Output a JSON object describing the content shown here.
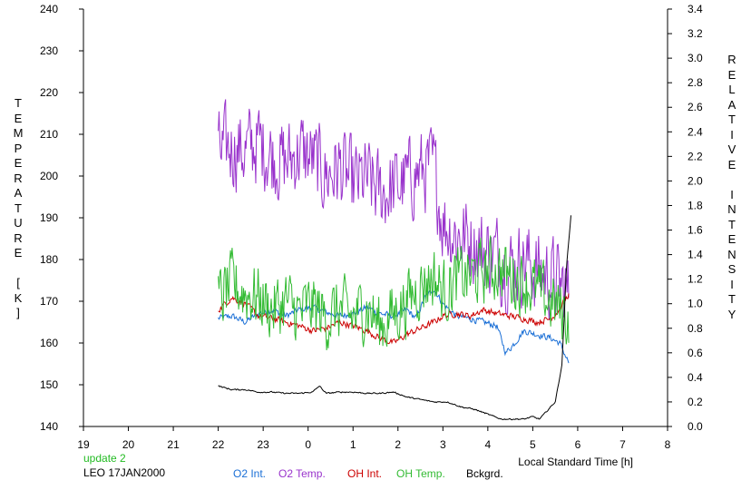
{
  "chart_data": {
    "type": "line",
    "xlabel": "Local Standard Time [h]",
    "ylabel_left": "TEMPERATURE [K]",
    "ylabel_right": "RELATIVE INTENSITY",
    "x_ticks": [
      "19",
      "20",
      "21",
      "22",
      "23",
      "0",
      "1",
      "2",
      "3",
      "4",
      "5",
      "6",
      "7",
      "8"
    ],
    "ylim_left": [
      140,
      240
    ],
    "yticks_left": [
      140,
      150,
      160,
      170,
      180,
      190,
      200,
      210,
      220,
      230,
      240
    ],
    "ylim_right": [
      0.0,
      3.4
    ],
    "yticks_right": [
      "0.0",
      "0.2",
      "0.4",
      "0.6",
      "0.8",
      "1.0",
      "1.2",
      "1.4",
      "1.6",
      "1.8",
      "2.0",
      "2.2",
      "2.4",
      "2.6",
      "2.8",
      "3.0",
      "3.2",
      "3.4"
    ],
    "xlim_hours_after_19": [
      0,
      13
    ],
    "grid": false,
    "series": [
      {
        "name": "O2 Int.",
        "color": "#1a6fd6",
        "axis": "right",
        "x": [
          22.0,
          22.3,
          22.6,
          22.9,
          23.2,
          23.5,
          23.8,
          24.1,
          24.4,
          24.7,
          25.0,
          25.3,
          25.6,
          25.9,
          26.2,
          26.4,
          26.6,
          26.8,
          27.0,
          27.3,
          27.6,
          27.9,
          28.2,
          28.4,
          28.6,
          28.8,
          29.0,
          29.2,
          29.4,
          29.6,
          29.8
        ],
        "values": [
          0.88,
          0.9,
          0.85,
          0.92,
          0.95,
          0.9,
          0.95,
          0.97,
          0.93,
          0.9,
          0.92,
          0.97,
          0.92,
          0.9,
          0.95,
          0.88,
          1.05,
          1.12,
          1.0,
          0.9,
          0.88,
          0.85,
          0.82,
          0.6,
          0.68,
          0.78,
          0.76,
          0.74,
          0.72,
          0.68,
          0.52
        ]
      },
      {
        "name": "O2 Temp.",
        "color": "#9933cc",
        "axis": "left",
        "x": [
          22.0,
          22.3,
          22.6,
          22.9,
          23.2,
          23.5,
          23.8,
          24.1,
          24.4,
          24.7,
          25.0,
          25.3,
          25.6,
          25.9,
          26.2,
          26.5,
          26.8,
          27.0,
          27.3,
          27.6,
          27.9,
          28.2,
          28.5,
          28.8,
          29.1,
          29.4,
          29.6,
          29.8
        ],
        "values": [
          205,
          207,
          206,
          208,
          205,
          203,
          206,
          204,
          200,
          202,
          198,
          199,
          196,
          197,
          199,
          201,
          202,
          189,
          186,
          185,
          182,
          181,
          178,
          180,
          177,
          176,
          174,
          172
        ]
      },
      {
        "name": "OH Int.",
        "color": "#cc0000",
        "axis": "right",
        "x": [
          22.0,
          22.3,
          22.6,
          22.9,
          23.2,
          23.5,
          23.8,
          24.1,
          24.4,
          24.7,
          25.0,
          25.3,
          25.6,
          25.9,
          26.2,
          26.5,
          26.8,
          27.0,
          27.3,
          27.6,
          27.9,
          28.2,
          28.5,
          28.8,
          29.1,
          29.4,
          29.6,
          29.8
        ],
        "values": [
          0.95,
          1.05,
          1.0,
          0.9,
          0.88,
          0.85,
          0.82,
          0.78,
          0.8,
          0.85,
          0.82,
          0.78,
          0.72,
          0.68,
          0.75,
          0.8,
          0.85,
          0.9,
          0.92,
          0.9,
          0.95,
          0.92,
          0.9,
          0.88,
          0.85,
          0.88,
          0.95,
          1.08
        ]
      },
      {
        "name": "OH Temp.",
        "color": "#33bb33",
        "axis": "left",
        "x": [
          22.0,
          22.3,
          22.6,
          22.9,
          23.2,
          23.5,
          23.8,
          24.1,
          24.4,
          24.7,
          25.0,
          25.3,
          25.6,
          25.9,
          26.2,
          26.5,
          26.8,
          27.0,
          27.3,
          27.6,
          27.9,
          28.2,
          28.5,
          28.8,
          29.1,
          29.4,
          29.6,
          29.8
        ],
        "values": [
          170,
          174,
          172,
          171,
          168,
          170,
          167,
          169,
          166,
          168,
          166,
          169,
          164,
          167,
          170,
          174,
          176,
          172,
          175,
          176,
          177,
          178,
          176,
          175,
          172,
          170,
          168,
          166
        ]
      },
      {
        "name": "Bckgrd.",
        "color": "#000000",
        "axis": "right",
        "x": [
          22.0,
          22.3,
          22.6,
          22.9,
          23.2,
          23.5,
          23.8,
          24.1,
          24.25,
          24.4,
          24.7,
          25.0,
          25.3,
          25.6,
          25.9,
          26.2,
          26.5,
          26.8,
          27.1,
          27.4,
          27.7,
          28.0,
          28.3,
          28.6,
          28.8,
          29.0,
          29.15,
          29.3,
          29.5,
          29.65,
          29.75,
          29.85
        ],
        "values": [
          0.33,
          0.3,
          0.3,
          0.28,
          0.28,
          0.27,
          0.27,
          0.28,
          0.33,
          0.27,
          0.28,
          0.28,
          0.27,
          0.27,
          0.28,
          0.24,
          0.22,
          0.2,
          0.2,
          0.16,
          0.14,
          0.1,
          0.06,
          0.06,
          0.06,
          0.08,
          0.06,
          0.12,
          0.2,
          0.5,
          1.3,
          1.72
        ]
      }
    ]
  },
  "footer": {
    "update_text": "update 2",
    "station_date": "LEO 17JAN2000"
  }
}
